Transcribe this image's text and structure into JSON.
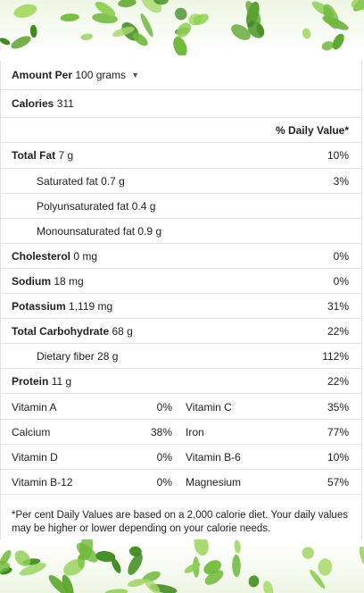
{
  "header": {
    "amount_label": "Amount Per",
    "amount_unit": "100 grams"
  },
  "calories": {
    "label": "Calories",
    "value": "311"
  },
  "daily_value_header": "% Daily Value*",
  "nutrients": [
    {
      "label": "Total Fat",
      "amount": "7 g",
      "dv": "10%",
      "bold": true,
      "indent": false
    },
    {
      "label": "Saturated fat",
      "amount": "0.7 g",
      "dv": "3%",
      "bold": false,
      "indent": true
    },
    {
      "label": "Polyunsaturated fat",
      "amount": "0.4 g",
      "dv": "",
      "bold": false,
      "indent": true
    },
    {
      "label": "Monounsaturated fat",
      "amount": "0.9 g",
      "dv": "",
      "bold": false,
      "indent": true
    },
    {
      "label": "Cholesterol",
      "amount": "0 mg",
      "dv": "0%",
      "bold": true,
      "indent": false
    },
    {
      "label": "Sodium",
      "amount": "18 mg",
      "dv": "0%",
      "bold": true,
      "indent": false
    },
    {
      "label": "Potassium",
      "amount": "1,119 mg",
      "dv": "31%",
      "bold": true,
      "indent": false
    },
    {
      "label": "Total Carbohydrate",
      "amount": "68 g",
      "dv": "22%",
      "bold": true,
      "indent": false
    },
    {
      "label": "Dietary fiber",
      "amount": "28 g",
      "dv": "112%",
      "bold": false,
      "indent": true
    },
    {
      "label": "Protein",
      "amount": "11 g",
      "dv": "22%",
      "bold": true,
      "indent": false
    }
  ],
  "vitamins": [
    {
      "left_name": "Vitamin A",
      "left_dv": "0%",
      "right_name": "Vitamin C",
      "right_dv": "35%"
    },
    {
      "left_name": "Calcium",
      "left_dv": "38%",
      "right_name": "Iron",
      "right_dv": "77%"
    },
    {
      "left_name": "Vitamin D",
      "left_dv": "0%",
      "right_name": "Vitamin B-6",
      "right_dv": "10%"
    },
    {
      "left_name": "Vitamin B-12",
      "left_dv": "0%",
      "right_name": "Magnesium",
      "right_dv": "57%"
    }
  ],
  "footnote": "*Per cent Daily Values are based on a 2,000 calorie diet. Your daily values may be higher or lower depending on your calorie needs.",
  "icons": {
    "dropdown": "caret-down-icon",
    "decoration": "leaf-border"
  },
  "colors": {
    "text": "#202124",
    "divider": "#e4e4e4",
    "leaf": "#6fb83a",
    "leaf_dark": "#3f8a1f"
  }
}
